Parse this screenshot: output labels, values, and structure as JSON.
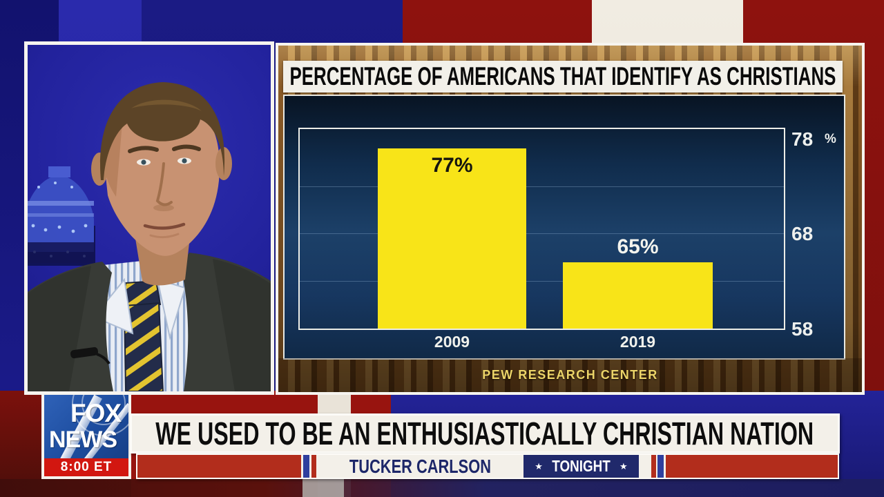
{
  "broadcast": {
    "network": "FOX NEWS",
    "logo": {
      "line1": "FOX",
      "line2": "NEWS",
      "time": "8:00 ET"
    },
    "chyron": "WE USED TO BE AN ENTHUSIASTICALLY CHRISTIAN NATION",
    "banner": {
      "show_name": "TUCKER CARLSON",
      "show_suffix": "TONIGHT",
      "star": "★"
    }
  },
  "chart_panel": {
    "title": "PERCENTAGE OF AMERICANS THAT IDENTIFY AS CHRISTIANS",
    "source": "PEW RESEARCH CENTER",
    "axis_unit": "%"
  },
  "chart_data": {
    "type": "bar",
    "title": "PERCENTAGE OF AMERICANS THAT IDENTIFY AS CHRISTIANS",
    "categories": [
      "2009",
      "2019"
    ],
    "values": [
      77,
      65
    ],
    "bar_labels": [
      "77%",
      "65%"
    ],
    "yticks": [
      78,
      68,
      58
    ],
    "ylim": [
      58,
      79
    ],
    "ylabel": "%",
    "grid": "horizontal",
    "legend": "none",
    "bar_color": "#f8e418",
    "source": "PEW RESEARCH CENTER"
  },
  "colors": {
    "bar_yellow": "#f8e418",
    "chart_bg_navy": "#1c4068",
    "fox_blue": "#1d4d9f",
    "fox_red": "#d21710",
    "banner_red": "#b22d1c",
    "banner_navy": "#20296b",
    "backdrop_red": "#8e120e",
    "backdrop_blue": "#1d1d82"
  }
}
